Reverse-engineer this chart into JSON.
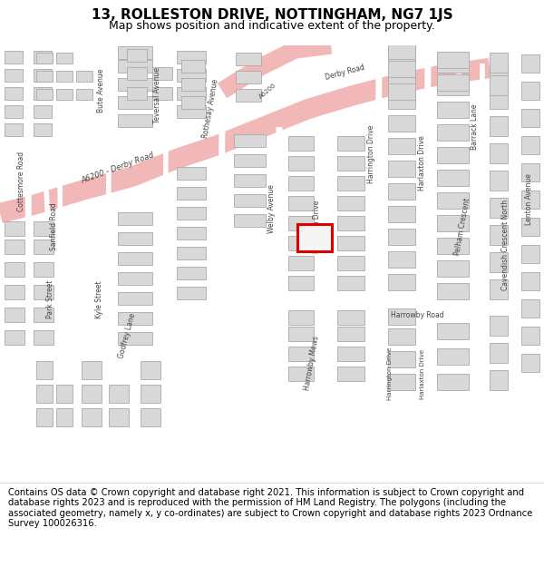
{
  "title": "13, ROLLESTON DRIVE, NOTTINGHAM, NG7 1JS",
  "subtitle": "Map shows position and indicative extent of the property.",
  "footer": "Contains OS data © Crown copyright and database right 2021. This information is subject to Crown copyright and database rights 2023 and is reproduced with the permission of HM Land Registry. The polygons (including the associated geometry, namely x, y co-ordinates) are subject to Crown copyright and database rights 2023 Ordnance Survey 100026316.",
  "bg_color": "#eeeae4",
  "road_color": "#ffffff",
  "major_road_color": "#f2b8b8",
  "building_color": "#d8d8d8",
  "building_edge": "#aaaaaa",
  "highlight_color": "#dd0000",
  "highlight_fill": "#f5f5f5",
  "title_fontsize": 11,
  "subtitle_fontsize": 9,
  "footer_fontsize": 7.2,
  "label_color": "#444444",
  "label_fs": 5.5
}
